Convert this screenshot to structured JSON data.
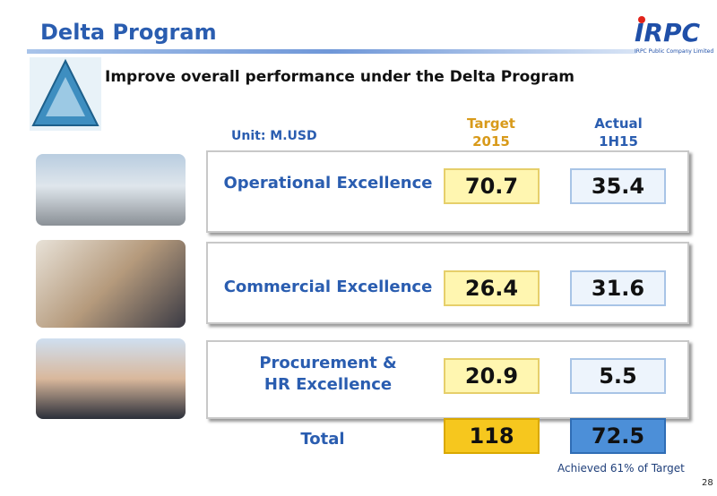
{
  "header": {
    "title": "Delta Program",
    "logo": "IRPC",
    "company": "IRPC Public Company Limited"
  },
  "subtitle": "Improve overall performance under the Delta Program",
  "table": {
    "unit": "Unit: M.USD",
    "columns": [
      [
        "Target",
        "2015"
      ],
      [
        "Actual",
        "1H15"
      ]
    ],
    "rows": [
      {
        "label": [
          "Operational Excellence"
        ],
        "target": 70.7,
        "actual": 35.4
      },
      {
        "label": [
          "Commercial Excellence"
        ],
        "target": 26.4,
        "actual": 31.6
      },
      {
        "label": [
          "Procurement &",
          "HR Excellence"
        ],
        "target": 20.9,
        "actual": 5.5
      }
    ],
    "total": {
      "label": "Total",
      "target": 118,
      "actual": 72.5
    }
  },
  "note": "Achieved 61% of Target",
  "page_number": "28"
}
